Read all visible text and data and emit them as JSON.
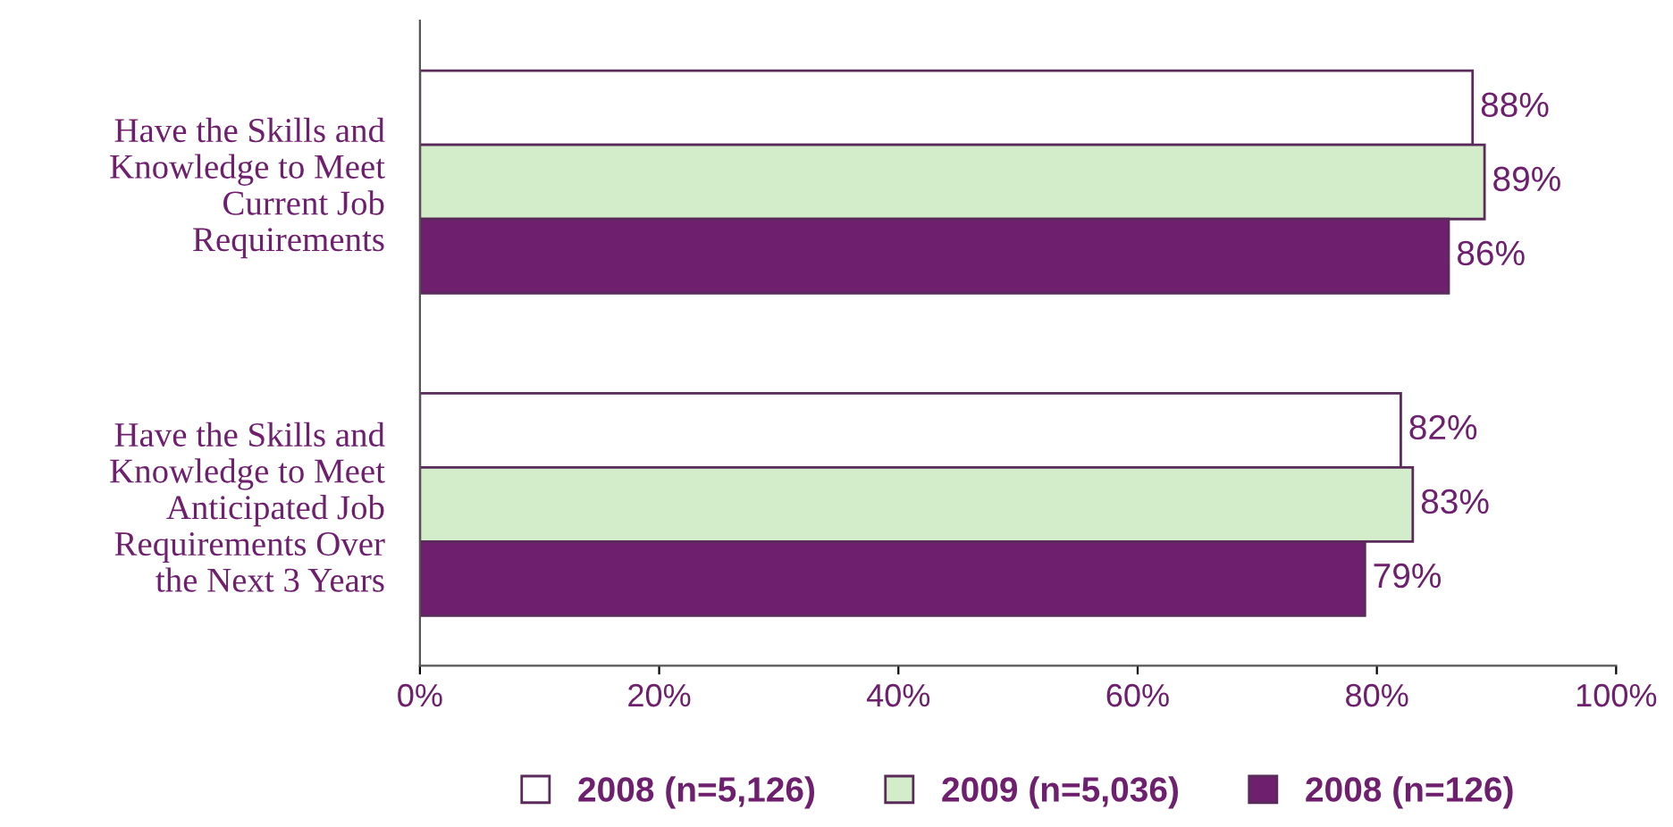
{
  "chart_data": {
    "type": "bar",
    "orientation": "horizontal",
    "categories": [
      "Have the Skills and\nKnowledge to Meet\nCurrent Job\nRequirements",
      "Have the Skills and\nKnowledge to Meet\nAnticipated Job\nRequirements Over\nthe Next 3 Years"
    ],
    "series": [
      {
        "name": "2008 (n=5,126)",
        "color": "#ffffff",
        "values": [
          88,
          82
        ],
        "value_labels": [
          "88%",
          "82%"
        ]
      },
      {
        "name": "2009 (n=5,036)",
        "color": "#d3ecc9",
        "values": [
          89,
          83
        ],
        "value_labels": [
          "89%",
          "83%"
        ]
      },
      {
        "name": "2008 (n=126)",
        "color": "#6e1f6e",
        "values": [
          86,
          79
        ],
        "value_labels": [
          "86%",
          "79%"
        ]
      }
    ],
    "xlim": [
      0,
      100
    ],
    "xticks": [
      {
        "value": 0,
        "label": "0%"
      },
      {
        "value": 20,
        "label": "20%"
      },
      {
        "value": 40,
        "label": "40%"
      },
      {
        "value": 60,
        "label": "60%"
      },
      {
        "value": 80,
        "label": "80%"
      },
      {
        "value": 100,
        "label": "100%"
      }
    ],
    "grid": false,
    "legend": "bottom"
  }
}
